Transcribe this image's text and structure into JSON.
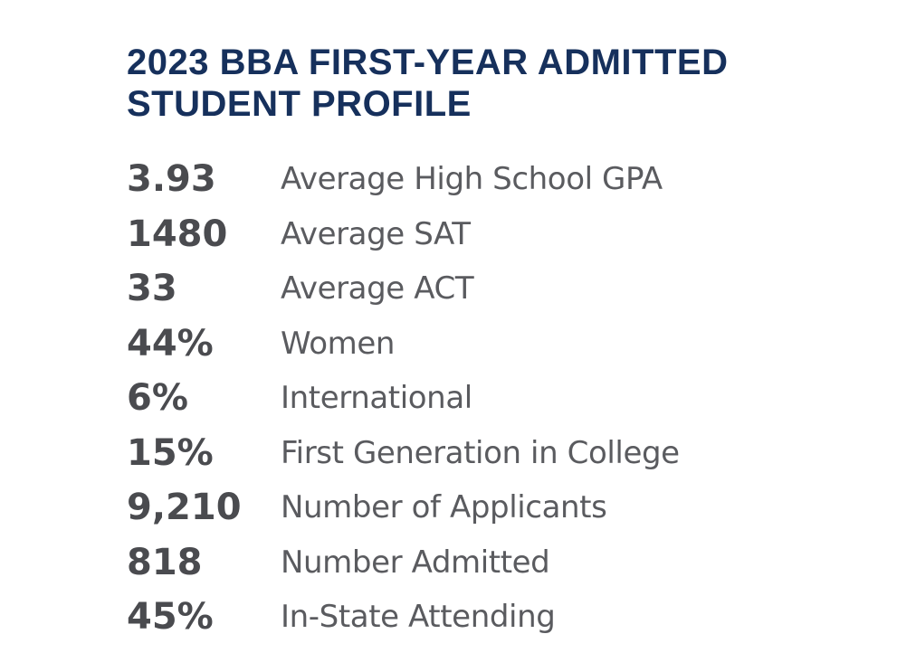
{
  "profile": {
    "title_line1": "2023 BBA FIRST-YEAR ADMITTED",
    "title_line2": "STUDENT PROFILE",
    "stats": [
      {
        "value": "3.93",
        "label": "Average High School GPA"
      },
      {
        "value": "1480",
        "label": "Average SAT"
      },
      {
        "value": "33",
        "label": "Average ACT"
      },
      {
        "value": "44%",
        "label": "Women"
      },
      {
        "value": "6%",
        "label": "International"
      },
      {
        "value": "15%",
        "label": "First Generation in College"
      },
      {
        "value": "9,210",
        "label": "Number of Applicants"
      },
      {
        "value": "818",
        "label": "Number Admitted"
      },
      {
        "value": "45%",
        "label": "In-State Attending"
      }
    ]
  },
  "colors": {
    "title": "#16305c",
    "value": "#4a4b4f",
    "label": "#5a5b5f",
    "background": "#ffffff"
  }
}
